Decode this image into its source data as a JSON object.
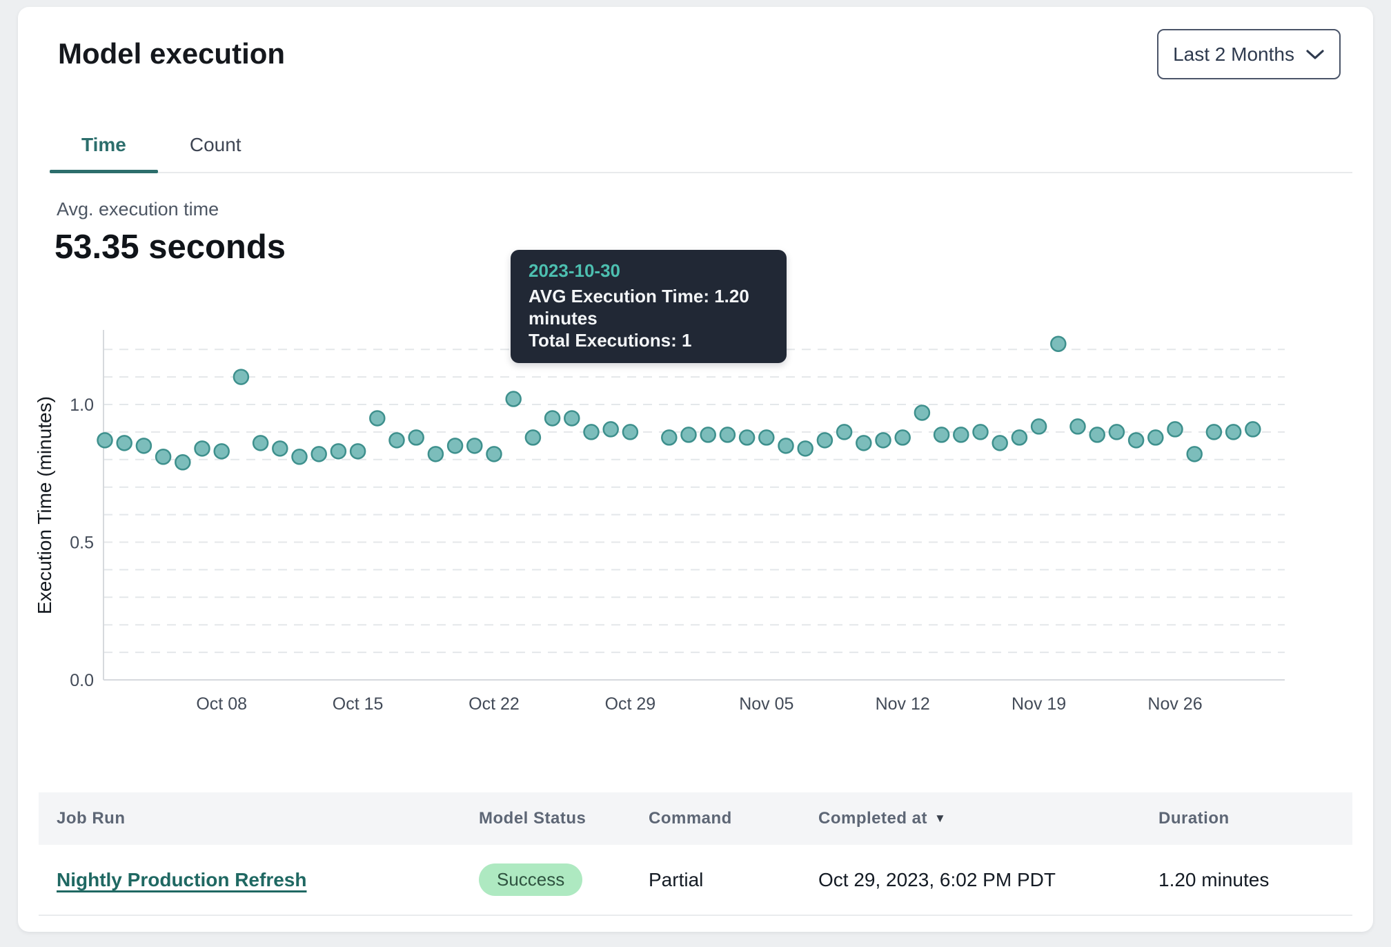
{
  "header": {
    "title": "Model execution",
    "range_selector": {
      "label": "Last 2 Months"
    }
  },
  "tabs": [
    {
      "label": "Time",
      "active": true
    },
    {
      "label": "Count",
      "active": false
    }
  ],
  "summary": {
    "label": "Avg. execution time",
    "value": "53.35 seconds"
  },
  "tooltip": {
    "date": "2023-10-30",
    "avg_line": "AVG Execution Time: 1.20 minutes",
    "total_line": "Total Executions: 1"
  },
  "colors": {
    "accent_teal": "#2c6e6c",
    "point_fill": "#7cbdbb",
    "point_stroke": "#3e908d",
    "highlight_point": "#4d8c91",
    "tooltip_bg": "#212835",
    "tooltip_title": "#4dbfb0",
    "badge_bg": "#aee9c1",
    "badge_text": "#2f5340"
  },
  "chart_data": {
    "type": "scatter",
    "title": "",
    "xlabel": "",
    "ylabel": "Execution Time (minutes)",
    "ylim": [
      0,
      1.225
    ],
    "grid": "horizontal-dashed-0.1-steps",
    "legend": "none",
    "yticks": [
      0.0,
      0.5,
      1.0
    ],
    "ytick_labels": [
      "0.0",
      "0.5",
      "1.0"
    ],
    "xtick_labels": [
      "Oct 08",
      "Oct 15",
      "Oct 22",
      "Oct 29",
      "Nov 05",
      "Nov 12",
      "Nov 19",
      "Nov 26"
    ],
    "xtick_day_index": [
      6,
      13,
      20,
      27,
      34,
      41,
      48,
      55
    ],
    "highlight_date": "2023-10-30",
    "highlight_value": 1.2,
    "point_color": "#7cbdbb",
    "point_stroke": "#3e908d",
    "highlight_color": "#4d8c91",
    "x_dates": [
      "2023-10-02",
      "2023-10-03",
      "2023-10-04",
      "2023-10-05",
      "2023-10-06",
      "2023-10-07",
      "2023-10-08",
      "2023-10-09",
      "2023-10-10",
      "2023-10-11",
      "2023-10-12",
      "2023-10-13",
      "2023-10-14",
      "2023-10-15",
      "2023-10-16",
      "2023-10-17",
      "2023-10-18",
      "2023-10-19",
      "2023-10-20",
      "2023-10-21",
      "2023-10-22",
      "2023-10-23",
      "2023-10-24",
      "2023-10-25",
      "2023-10-26",
      "2023-10-27",
      "2023-10-28",
      "2023-10-29",
      "2023-10-30",
      "2023-10-31",
      "2023-11-01",
      "2023-11-02",
      "2023-11-03",
      "2023-11-04",
      "2023-11-05",
      "2023-11-06",
      "2023-11-07",
      "2023-11-08",
      "2023-11-09",
      "2023-11-10",
      "2023-11-11",
      "2023-11-12",
      "2023-11-13",
      "2023-11-14",
      "2023-11-15",
      "2023-11-16",
      "2023-11-17",
      "2023-11-18",
      "2023-11-19",
      "2023-11-20",
      "2023-11-21",
      "2023-11-22",
      "2023-11-23",
      "2023-11-24",
      "2023-11-25",
      "2023-11-26",
      "2023-11-27",
      "2023-11-28",
      "2023-11-29",
      "2023-11-30"
    ],
    "values": [
      0.87,
      0.86,
      0.85,
      0.81,
      0.79,
      0.84,
      0.83,
      1.1,
      0.86,
      0.84,
      0.81,
      0.82,
      0.83,
      0.83,
      0.95,
      0.87,
      0.88,
      0.82,
      0.85,
      0.85,
      0.82,
      1.02,
      0.88,
      0.95,
      0.95,
      0.9,
      0.91,
      0.9,
      1.2,
      0.88,
      0.89,
      0.89,
      0.89,
      0.88,
      0.88,
      0.85,
      0.84,
      0.87,
      0.9,
      0.86,
      0.87,
      0.88,
      0.97,
      0.89,
      0.89,
      0.9,
      0.86,
      0.88,
      0.92,
      1.22,
      0.92,
      0.89,
      0.9,
      0.87,
      0.88,
      0.91,
      0.82,
      0.9,
      0.9,
      0.91
    ]
  },
  "table": {
    "columns": [
      "Job Run",
      "Model Status",
      "Command",
      "Completed at",
      "Duration"
    ],
    "sort_column": "Completed at",
    "rows": [
      {
        "job_run": "Nightly Production Refresh",
        "model_status": "Success",
        "command": "Partial",
        "completed_at": "Oct 29, 2023, 6:02 PM PDT",
        "duration": "1.20 minutes"
      }
    ]
  }
}
